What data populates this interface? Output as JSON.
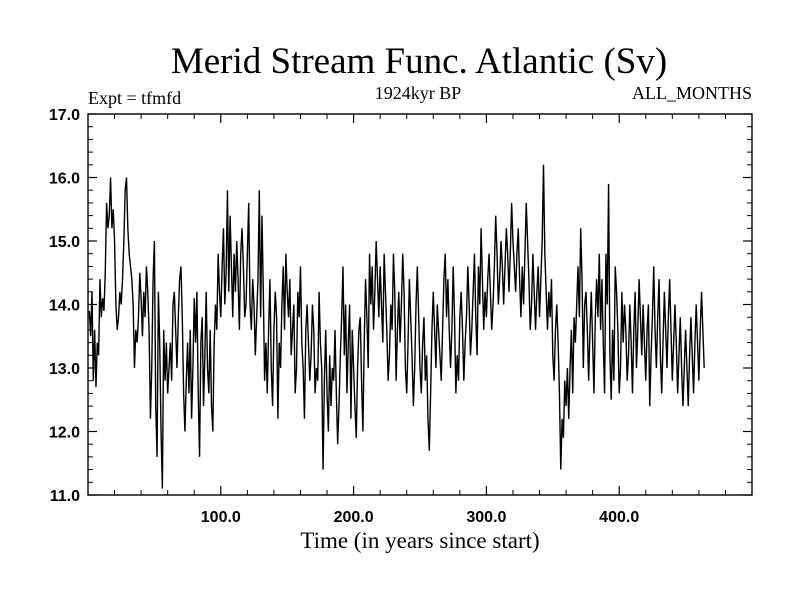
{
  "chart_data": {
    "type": "line",
    "title": "Merid Stream Func. Atlantic (Sv)",
    "subtitle_left": "Expt = tfmfd",
    "subtitle_center": "1924kyr BP",
    "subtitle_right": "ALL_MONTHS",
    "xlabel": "Time (in years since start)",
    "ylabel": "",
    "xlim": [
      0,
      500
    ],
    "ylim": [
      11.0,
      17.0
    ],
    "x_ticks": [
      100,
      200,
      300,
      400
    ],
    "x_tick_labels": [
      "100.0",
      "200.0",
      "300.0",
      "400.0"
    ],
    "y_ticks": [
      11,
      12,
      13,
      14,
      15,
      16,
      17
    ],
    "y_tick_labels": [
      "11.0",
      "12.0",
      "13.0",
      "14.0",
      "15.0",
      "16.0",
      "17.0"
    ],
    "series": [
      {
        "name": "Merid Stream Func. Atlantic",
        "x_start": 1,
        "x_step": 1,
        "values": [
          13.9,
          13.5,
          14.2,
          12.8,
          13.6,
          12.7,
          13.4,
          13.2,
          14.4,
          13.8,
          14.1,
          13.9,
          14.5,
          15.6,
          15.2,
          15.4,
          16.0,
          15.2,
          15.5,
          15.0,
          14.0,
          13.6,
          13.8,
          14.2,
          14.0,
          14.4,
          15.0,
          15.8,
          16.0,
          15.2,
          14.8,
          14.6,
          14.4,
          14.0,
          13.0,
          13.6,
          13.4,
          13.8,
          14.5,
          14.1,
          13.5,
          14.2,
          13.8,
          14.6,
          14.2,
          13.6,
          12.2,
          13.0,
          14.4,
          15.0,
          12.4,
          11.6,
          14.2,
          13.4,
          12.0,
          11.1,
          13.6,
          12.8,
          13.4,
          12.6,
          13.0,
          13.4,
          12.8,
          14.0,
          14.2,
          13.6,
          13.0,
          13.8,
          14.4,
          14.6,
          13.8,
          12.6,
          12.0,
          12.8,
          13.4,
          12.6,
          13.6,
          12.2,
          13.0,
          14.1,
          13.4,
          14.2,
          12.6,
          11.6,
          13.4,
          13.8,
          12.4,
          13.2,
          14.2,
          13.0,
          12.6,
          13.6,
          12.4,
          12.0,
          13.4,
          14.0,
          13.6,
          14.8,
          14.2,
          13.8,
          14.6,
          15.2,
          14.0,
          14.5,
          15.8,
          14.2,
          15.4,
          14.6,
          13.8,
          14.8,
          14.2,
          15.0,
          14.4,
          13.6,
          14.8,
          15.2,
          14.6,
          13.8,
          14.0,
          14.8,
          15.6,
          14.0,
          13.6,
          14.4,
          14.0,
          13.2,
          13.8,
          14.4,
          15.8,
          13.8,
          15.4,
          14.2,
          12.8,
          13.4,
          12.6,
          13.6,
          14.4,
          13.0,
          12.4,
          13.6,
          14.2,
          13.8,
          12.2,
          13.4,
          13.0,
          14.0,
          14.6,
          13.6,
          14.8,
          14.2,
          13.8,
          14.4,
          13.2,
          13.6,
          14.0,
          12.6,
          13.0,
          14.2,
          13.8,
          14.6,
          13.4,
          13.0,
          12.2,
          13.6,
          14.0,
          13.4,
          12.8,
          13.2,
          14.0,
          13.6,
          12.6,
          13.0,
          12.8,
          14.2,
          13.4,
          13.0,
          11.4,
          12.8,
          13.6,
          12.6,
          12.0,
          13.2,
          12.4,
          13.0,
          12.8,
          13.6,
          12.6,
          11.8,
          12.4,
          13.2,
          13.8,
          14.6,
          13.2,
          14.0,
          12.6,
          13.4,
          14.0,
          12.2,
          13.6,
          13.0,
          12.4,
          11.9,
          13.0,
          13.6,
          13.8,
          12.8,
          12.0,
          13.4,
          14.4,
          13.8,
          13.0,
          14.8,
          14.0,
          14.6,
          13.6,
          14.2,
          15.0,
          14.4,
          13.8,
          14.6,
          14.0,
          13.4,
          14.8,
          14.2,
          13.6,
          12.8,
          13.2,
          14.0,
          13.6,
          14.8,
          14.2,
          12.8,
          13.6,
          14.2,
          13.4,
          14.0,
          14.8,
          14.2,
          13.0,
          12.6,
          13.4,
          14.4,
          13.8,
          13.2,
          12.4,
          13.0,
          14.0,
          14.6,
          13.8,
          13.0,
          12.6,
          13.4,
          13.8,
          12.8,
          13.2,
          12.2,
          11.7,
          12.6,
          13.6,
          14.2,
          13.6,
          13.0,
          14.0,
          13.6,
          13.2,
          12.8,
          13.6,
          14.4,
          14.8,
          13.8,
          14.4,
          13.6,
          13.0,
          13.6,
          14.6,
          13.8,
          12.6,
          13.2,
          12.8,
          13.8,
          14.2,
          13.6,
          12.8,
          13.4,
          13.8,
          14.6,
          14.0,
          13.2,
          13.6,
          14.2,
          14.8,
          13.8,
          13.2,
          14.6,
          14.0,
          15.2,
          14.4,
          13.6,
          14.2,
          13.8,
          14.4,
          14.8,
          14.2,
          13.6,
          14.0,
          14.6,
          15.4,
          14.8,
          14.0,
          14.4,
          15.0,
          14.6,
          14.0,
          14.6,
          15.2,
          14.8,
          14.2,
          14.8,
          15.6,
          15.0,
          14.6,
          14.2,
          14.8,
          15.2,
          14.4,
          13.8,
          14.6,
          14.0,
          14.8,
          15.6,
          15.0,
          14.4,
          13.6,
          14.0,
          14.8,
          14.2,
          13.6,
          14.2,
          14.6,
          13.8,
          14.4,
          15.0,
          16.2,
          14.8,
          14.2,
          13.6,
          14.2,
          13.8,
          14.4,
          13.2,
          12.8,
          13.6,
          14.0,
          13.4,
          12.6,
          11.4,
          12.2,
          11.9,
          12.8,
          12.4,
          13.0,
          12.2,
          13.0,
          13.6,
          12.6,
          13.8,
          13.4,
          14.0,
          14.6,
          13.8,
          15.2,
          14.4,
          13.0,
          14.0,
          14.2,
          13.6,
          12.8,
          13.6,
          14.2,
          13.4,
          12.6,
          13.8,
          14.4,
          13.8,
          14.8,
          13.6,
          14.4,
          13.4,
          12.6,
          14.8,
          14.0,
          15.9,
          13.2,
          12.5,
          13.6,
          12.8,
          14.6,
          14.2,
          13.6,
          12.6,
          13.0,
          14.2,
          13.4,
          14.0,
          13.6,
          12.8,
          13.2,
          14.0,
          13.4,
          12.6,
          13.6,
          14.2,
          13.0,
          13.6,
          14.4,
          13.8,
          13.2,
          14.0,
          13.4,
          12.8,
          13.6,
          14.0,
          12.4,
          13.2,
          13.8,
          14.6,
          13.6,
          13.0,
          13.8,
          14.4,
          13.2,
          12.6,
          13.4,
          14.2,
          13.6,
          13.0,
          13.8,
          14.4,
          13.6,
          12.8,
          13.4,
          14.0,
          13.4,
          12.6,
          13.2,
          13.8,
          13.0,
          12.4,
          13.0,
          13.6,
          13.0,
          12.4,
          13.2,
          13.8,
          13.2,
          12.6,
          13.4,
          14.0,
          13.4,
          12.8,
          13.6,
          14.2,
          13.6,
          13.0
        ]
      }
    ]
  }
}
